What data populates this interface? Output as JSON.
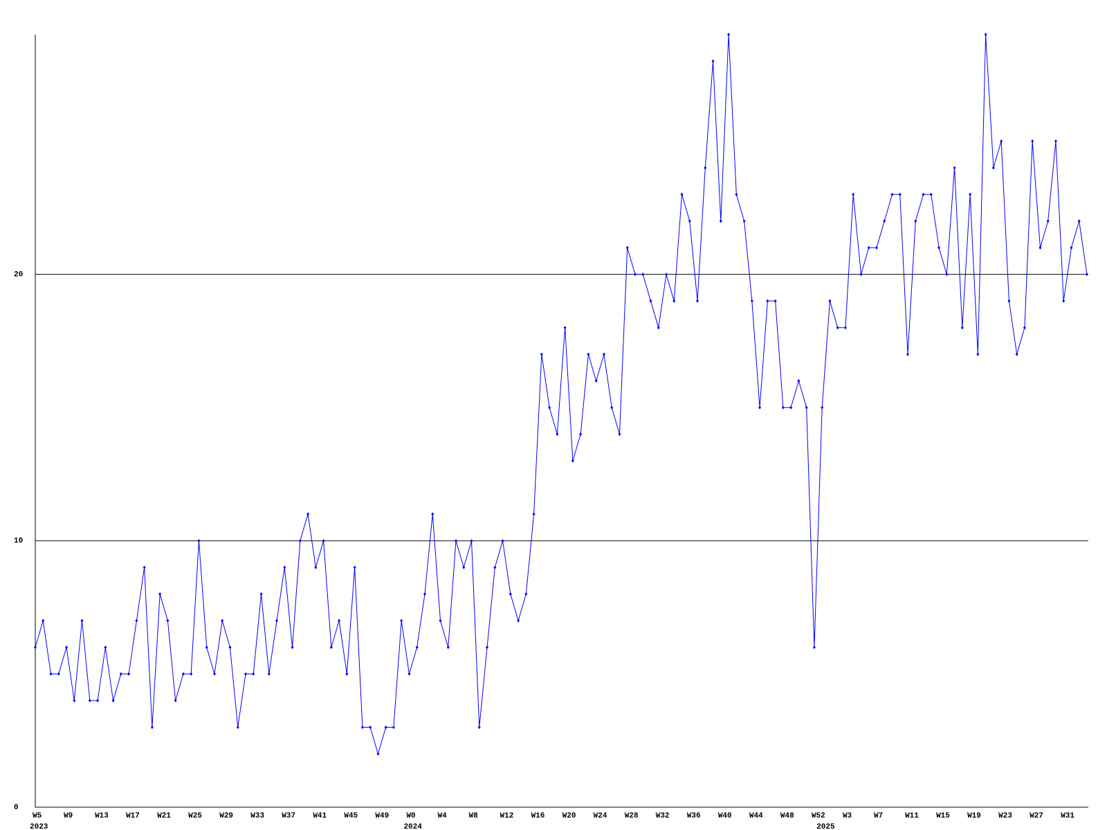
{
  "chart_data": {
    "type": "line",
    "categories": [
      "W5",
      null,
      null,
      null,
      "W9",
      null,
      null,
      null,
      "W13",
      null,
      null,
      null,
      "W17",
      null,
      null,
      null,
      "W21",
      null,
      null,
      null,
      "W25",
      null,
      null,
      null,
      "W29",
      null,
      null,
      null,
      "W33",
      null,
      null,
      null,
      "W37",
      null,
      null,
      null,
      "W41",
      null,
      null,
      null,
      "W45",
      null,
      null,
      null,
      "W49",
      null,
      null,
      null,
      "W0",
      null,
      null,
      null,
      "W4",
      null,
      null,
      null,
      "W8",
      null,
      null,
      null,
      "W12",
      null,
      null,
      null,
      "W16",
      null,
      null,
      null,
      "W20",
      null,
      null,
      null,
      "W24",
      null,
      null,
      null,
      "W28",
      null,
      null,
      null,
      "W32",
      null,
      null,
      null,
      "W36",
      null,
      null,
      null,
      "W40",
      null,
      null,
      null,
      "W44",
      null,
      null,
      null,
      "W48",
      null,
      null,
      null,
      "W52",
      null,
      null,
      null,
      "W3",
      null,
      null,
      null,
      "W7",
      null,
      null,
      null,
      "W11",
      null,
      null,
      null,
      "W15",
      null,
      null,
      null,
      "W19",
      null,
      null,
      null,
      "W23",
      null,
      null,
      null,
      "W27",
      null,
      null,
      null,
      "W31",
      null,
      null,
      null
    ],
    "years": [
      "2023",
      null,
      null,
      null,
      null,
      null,
      null,
      null,
      null,
      null,
      null,
      null,
      null,
      null,
      null,
      null,
      null,
      null,
      null,
      null,
      null,
      null,
      null,
      null,
      null,
      null,
      null,
      null,
      null,
      null,
      null,
      null,
      null,
      null,
      null,
      null,
      null,
      null,
      null,
      null,
      null,
      null,
      null,
      null,
      null,
      null,
      null,
      null,
      "2024",
      null,
      null,
      null,
      null,
      null,
      null,
      null,
      null,
      null,
      null,
      null,
      null,
      null,
      null,
      null,
      null,
      null,
      null,
      null,
      null,
      null,
      null,
      null,
      null,
      null,
      null,
      null,
      null,
      null,
      null,
      null,
      null,
      null,
      null,
      null,
      null,
      null,
      null,
      null,
      null,
      null,
      null,
      null,
      null,
      null,
      null,
      null,
      null,
      null,
      null,
      null,
      null,
      "2025",
      null,
      null,
      null,
      null,
      null,
      null,
      null,
      null,
      null,
      null,
      null,
      null,
      null,
      null,
      null,
      null,
      null,
      null,
      null,
      null,
      null,
      null,
      null,
      null,
      null,
      null,
      null,
      null,
      null,
      null,
      null,
      null,
      null,
      null
    ],
    "series": [
      {
        "color": "#0000ff",
        "values": [
          6,
          7,
          5,
          5,
          6,
          4,
          7,
          4,
          4,
          6,
          4,
          5,
          5,
          7,
          9,
          3,
          8,
          7,
          4,
          5,
          5,
          10,
          6,
          5,
          7,
          6,
          3,
          5,
          5,
          8,
          5,
          7,
          9,
          6,
          10,
          11,
          9,
          10,
          6,
          7,
          5,
          9,
          3,
          3,
          2,
          3,
          3,
          7,
          5,
          6,
          8,
          11,
          7,
          6,
          10,
          9,
          10,
          3,
          6,
          9,
          10,
          8,
          7,
          8,
          11,
          17,
          15,
          14,
          18,
          13,
          14,
          17,
          16,
          17,
          15,
          14,
          21,
          20,
          20,
          19,
          18,
          20,
          19,
          23,
          22,
          19,
          24,
          28,
          22,
          29,
          23,
          22,
          19,
          15,
          19,
          19,
          15,
          15,
          16,
          15,
          6,
          15,
          19,
          18,
          18,
          23,
          20,
          21,
          21,
          22,
          23,
          23,
          17,
          22,
          23,
          23,
          21,
          20,
          24,
          18,
          23,
          17,
          29,
          24,
          25,
          19,
          17,
          18,
          25,
          21,
          22,
          25,
          19,
          21,
          22,
          20
        ]
      }
    ],
    "ylim": [
      0,
      29
    ],
    "yticks": [
      0,
      10,
      20
    ],
    "grid": true
  }
}
